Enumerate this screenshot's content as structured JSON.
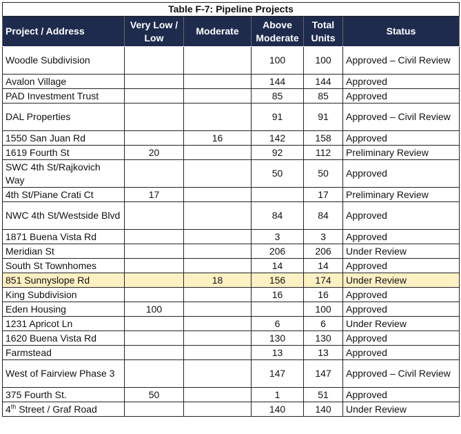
{
  "title": "Table F-7: Pipeline Projects",
  "columns": [
    "Project / Address",
    "Very Low / Low",
    "Moderate",
    "Above Moderate",
    "Total Units",
    "Status"
  ],
  "highlight_color": "#fdf1c4",
  "header_color": "#1e2b4d",
  "rows": [
    {
      "project": "Woodle Subdivision",
      "very_low_low": "",
      "moderate": "",
      "above_moderate": "100",
      "total": "100",
      "status": "Approved – Civil Review",
      "tall": true
    },
    {
      "project": "Avalon Village",
      "very_low_low": "",
      "moderate": "",
      "above_moderate": "144",
      "total": "144",
      "status": "Approved"
    },
    {
      "project": "PAD Investment Trust",
      "very_low_low": "",
      "moderate": "",
      "above_moderate": "85",
      "total": "85",
      "status": "Approved"
    },
    {
      "project": "DAL Properties",
      "very_low_low": "",
      "moderate": "",
      "above_moderate": "91",
      "total": "91",
      "status": "Approved – Civil Review",
      "tall": true
    },
    {
      "project": "1550 San Juan Rd",
      "very_low_low": "",
      "moderate": "16",
      "above_moderate": "142",
      "total": "158",
      "status": "Approved"
    },
    {
      "project": "1619 Fourth St",
      "very_low_low": "20",
      "moderate": "",
      "above_moderate": "92",
      "total": "112",
      "status": "Preliminary Review"
    },
    {
      "project": "SWC 4th St/Rajkovich Way",
      "very_low_low": "",
      "moderate": "",
      "above_moderate": "50",
      "total": "50",
      "status": "Approved",
      "tall": true
    },
    {
      "project": "4th St/Piane Crati Ct",
      "very_low_low": "17",
      "moderate": "",
      "above_moderate": "",
      "total": "17",
      "status": "Preliminary Review"
    },
    {
      "project": "NWC 4th St/Westside Blvd",
      "very_low_low": "",
      "moderate": "",
      "above_moderate": "84",
      "total": "84",
      "status": "Approved",
      "tall": true
    },
    {
      "project": "1871 Buena Vista Rd",
      "very_low_low": "",
      "moderate": "",
      "above_moderate": "3",
      "total": "3",
      "status": "Approved"
    },
    {
      "project": "Meridian St",
      "very_low_low": "",
      "moderate": "",
      "above_moderate": "206",
      "total": "206",
      "status": "Under Review"
    },
    {
      "project": "South St Townhomes",
      "very_low_low": "",
      "moderate": "",
      "above_moderate": "14",
      "total": "14",
      "status": "Approved"
    },
    {
      "project": "851 Sunnyslope Rd",
      "very_low_low": "",
      "moderate": "18",
      "above_moderate": "156",
      "total": "174",
      "status": "Under Review",
      "highlighted": true
    },
    {
      "project": "King Subdivision",
      "very_low_low": "",
      "moderate": "",
      "above_moderate": "16",
      "total": "16",
      "status": "Approved"
    },
    {
      "project": "Eden Housing",
      "very_low_low": "100",
      "moderate": "",
      "above_moderate": "",
      "total": "100",
      "status": "Approved"
    },
    {
      "project": "1231 Apricot Ln",
      "very_low_low": "",
      "moderate": "",
      "above_moderate": "6",
      "total": "6",
      "status": "Under Review"
    },
    {
      "project": "1620 Buena Vista Rd",
      "very_low_low": "",
      "moderate": "",
      "above_moderate": "130",
      "total": "130",
      "status": "Approved"
    },
    {
      "project": "Farmstead",
      "very_low_low": "",
      "moderate": "",
      "above_moderate": "13",
      "total": "13",
      "status": "Approved"
    },
    {
      "project": "West of Fairview Phase 3",
      "very_low_low": "",
      "moderate": "",
      "above_moderate": "147",
      "total": "147",
      "status": "Approved – Civil Review",
      "tall": true
    },
    {
      "project": "375 Fourth St.",
      "very_low_low": "50",
      "moderate": "",
      "above_moderate": "1",
      "total": "51",
      "status": "Approved"
    },
    {
      "project": "4",
      "project_sup": "th",
      "project_rest": " Street / Graf Road",
      "very_low_low": "",
      "moderate": "",
      "above_moderate": "140",
      "total": "140",
      "status": "Under Review"
    }
  ]
}
